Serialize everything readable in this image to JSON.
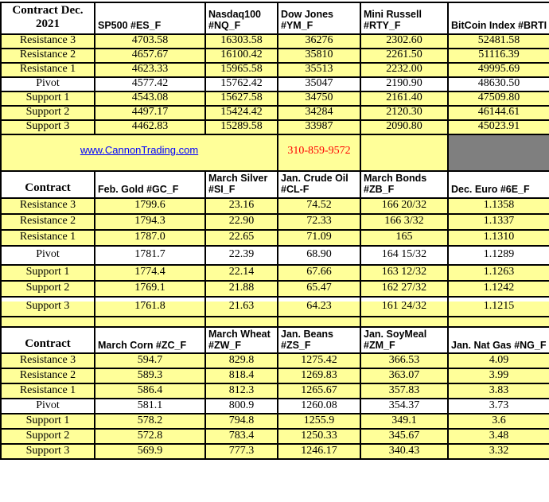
{
  "colors": {
    "row_yellow": "#ffff99",
    "band_gray": "#999999",
    "band_dark_gray": "#7f7f7f",
    "link_blue": "#0000ff",
    "phone_red": "#ff0000",
    "grid_black": "#000000"
  },
  "banner": {
    "link": "www.CannonTrading.com",
    "phone": "310-859-9572"
  },
  "tables": [
    {
      "title": "Contract Dec. 2021",
      "columns": [
        "SP500 #ES_F",
        "Nasdaq100 #NQ_F",
        "Dow Jones #YM_F",
        "Mini Russell #RTY_F",
        "BitCoin Index #BRTI"
      ],
      "rows": [
        {
          "label": "Resistance 3",
          "values": [
            "4703.58",
            "16303.58",
            "36276",
            "2302.60",
            "52481.58"
          ]
        },
        {
          "label": "Resistance 2",
          "values": [
            "4657.67",
            "16100.42",
            "35810",
            "2261.50",
            "51116.39"
          ]
        },
        {
          "label": "Resistance 1",
          "values": [
            "4623.33",
            "15965.58",
            "35513",
            "2232.00",
            "49995.69"
          ]
        },
        {
          "label": "Pivot",
          "values": [
            "4577.42",
            "15762.42",
            "35047",
            "2190.90",
            "48630.50"
          ]
        },
        {
          "label": "Support 1",
          "values": [
            "4543.08",
            "15627.58",
            "34750",
            "2161.40",
            "47509.80"
          ]
        },
        {
          "label": "Support 2",
          "values": [
            "4497.17",
            "15424.42",
            "34284",
            "2120.30",
            "46144.61"
          ]
        },
        {
          "label": "Support 3",
          "values": [
            "4462.83",
            "15289.58",
            "33987",
            "2090.80",
            "45023.91"
          ]
        }
      ]
    },
    {
      "title": "Contract",
      "columns": [
        "Feb. Gold #GC_F",
        "March Silver #SI_F",
        "Jan. Crude Oil #CL-F",
        "March Bonds #ZB_F",
        "Dec.  Euro #6E_F"
      ],
      "rows": [
        {
          "label": "Resistance 3",
          "values": [
            "1799.6",
            "23.16",
            "74.52",
            "166 20/32",
            "1.1358"
          ]
        },
        {
          "label": "Resistance 2",
          "values": [
            "1794.3",
            "22.90",
            "72.33",
            "166  3/32",
            "1.1337"
          ]
        },
        {
          "label": "Resistance 1",
          "values": [
            "1787.0",
            "22.65",
            "71.09",
            "165",
            "1.1310"
          ]
        },
        {
          "label": "Pivot",
          "values": [
            "1781.7",
            "22.39",
            "68.90",
            "164 15/32",
            "1.1289"
          ]
        },
        {
          "label": "Support 1",
          "values": [
            "1774.4",
            "22.14",
            "67.66",
            "163 12/32",
            "1.1263"
          ]
        },
        {
          "label": "Support 2",
          "values": [
            "1769.1",
            "21.88",
            "65.47",
            "162 27/32",
            "1.1242"
          ]
        },
        {
          "label": "Support 3",
          "values": [
            "1761.8",
            "21.63",
            "64.23",
            "161 24/32",
            "1.1215"
          ]
        }
      ]
    },
    {
      "title": "Contract",
      "columns": [
        "March Corn #ZC_F",
        "March  Wheat #ZW_F",
        "Jan. Beans #ZS_F",
        "Jan. SoyMeal #ZM_F",
        "Jan. Nat Gas #NG_F"
      ],
      "rows": [
        {
          "label": "Resistance 3",
          "values": [
            "594.7",
            "829.8",
            "1275.42",
            "366.53",
            "4.09"
          ]
        },
        {
          "label": "Resistance 2",
          "values": [
            "589.3",
            "818.4",
            "1269.83",
            "363.07",
            "3.99"
          ]
        },
        {
          "label": "Resistance 1",
          "values": [
            "586.4",
            "812.3",
            "1265.67",
            "357.83",
            "3.83"
          ]
        },
        {
          "label": "Pivot",
          "values": [
            "581.1",
            "800.9",
            "1260.08",
            "354.37",
            "3.73"
          ]
        },
        {
          "label": "Support 1",
          "values": [
            "578.2",
            "794.8",
            "1255.9",
            "349.1",
            "3.6"
          ]
        },
        {
          "label": "Support 2",
          "values": [
            "572.8",
            "783.4",
            "1250.33",
            "345.67",
            "3.48"
          ]
        },
        {
          "label": "Support 3",
          "values": [
            "569.9",
            "777.3",
            "1246.17",
            "340.43",
            "3.32"
          ]
        }
      ]
    }
  ]
}
